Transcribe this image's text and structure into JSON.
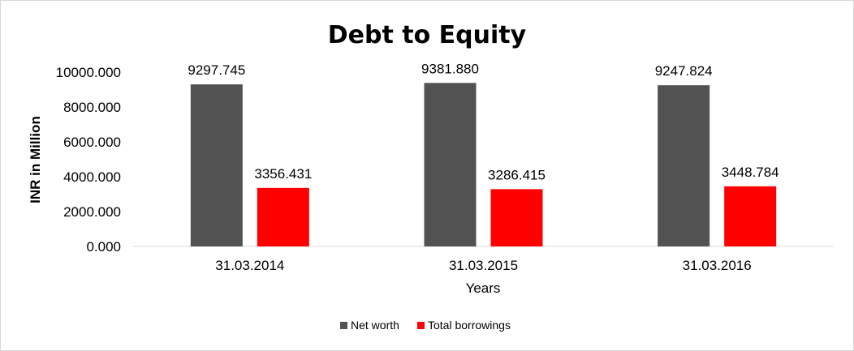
{
  "chart_data": {
    "type": "bar",
    "title": "Debt to Equity",
    "xlabel": "Years",
    "ylabel": "INR in Million",
    "categories": [
      "31.03.2014",
      "31.03.2015",
      "31.03.2016"
    ],
    "series": [
      {
        "name": "Net worth",
        "values": [
          9297.745,
          9381.88,
          9247.824
        ],
        "labels": [
          "9297.745",
          "9381.880",
          "9247.824"
        ],
        "color": "#525252"
      },
      {
        "name": "Total borrowings",
        "values": [
          3356.431,
          3286.415,
          3448.784
        ],
        "labels": [
          "3356.431",
          "3286.415",
          "3448.784"
        ],
        "color": "#ff0000"
      }
    ],
    "ylim": [
      0,
      10000
    ],
    "yticks": [
      "0.000",
      "2000.000",
      "4000.000",
      "6000.000",
      "8000.000",
      "10000.000"
    ],
    "grid": false,
    "legend": "bottom"
  }
}
